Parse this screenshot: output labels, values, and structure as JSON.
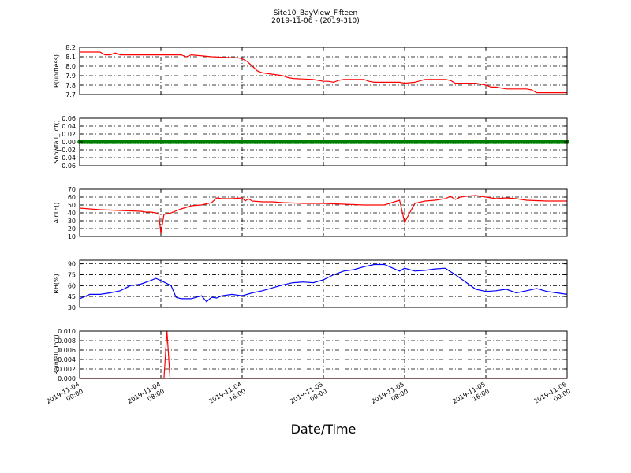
{
  "figure": {
    "title": "Site10_BayView_Fifteen",
    "subtitle": "2019-11-06 - (2019-310)",
    "xlabel": "Date/Time"
  },
  "chart_data": [
    {
      "type": "line",
      "ylabel": "P(unitless)",
      "color": "#ff0000",
      "ylim": [
        7.7,
        8.2
      ],
      "yticks": [
        "8.2",
        "8.1",
        "8.0",
        "7.9",
        "7.8",
        "7.7"
      ],
      "ytick_values": [
        8.2,
        8.1,
        8.0,
        7.9,
        7.8,
        7.7
      ],
      "xlim": [
        0,
        48
      ],
      "x": [
        0,
        2,
        2.5,
        3,
        3.5,
        4,
        6,
        6.5,
        7,
        7.5,
        8,
        10,
        10.5,
        11,
        13,
        15,
        15.5,
        16,
        16.5,
        17,
        17.5,
        18,
        20,
        20.5,
        21,
        23,
        23.5,
        24,
        24.5,
        25,
        25.5,
        26,
        28,
        28.5,
        29,
        31,
        31.5,
        32,
        33,
        34,
        35,
        36,
        36.5,
        37,
        38,
        39,
        40,
        40.5,
        41,
        42,
        44,
        44.5,
        45,
        46,
        48
      ],
      "y": [
        8.15,
        8.15,
        8.12,
        8.12,
        8.14,
        8.12,
        8.12,
        8.12,
        8.12,
        8.12,
        8.12,
        8.12,
        8.1,
        8.12,
        8.1,
        8.09,
        8.09,
        8.08,
        8.05,
        8.0,
        7.95,
        7.93,
        7.9,
        7.88,
        7.87,
        7.86,
        7.85,
        7.84,
        7.84,
        7.83,
        7.85,
        7.86,
        7.86,
        7.84,
        7.83,
        7.83,
        7.83,
        7.82,
        7.83,
        7.86,
        7.86,
        7.86,
        7.85,
        7.82,
        7.82,
        7.82,
        7.8,
        7.78,
        7.78,
        7.76,
        7.76,
        7.75,
        7.72,
        7.72,
        7.72
      ],
      "grid": true
    },
    {
      "type": "line",
      "ylabel": "Snowfall_Tot()",
      "color": "#008000",
      "ylim": [
        -0.06,
        0.06
      ],
      "yticks": [
        "0.06",
        "0.04",
        "0.02",
        "0.00",
        "−0.02",
        "−0.04",
        "−0.06"
      ],
      "ytick_values": [
        0.06,
        0.04,
        0.02,
        0.0,
        -0.02,
        -0.04,
        -0.06
      ],
      "xlim": [
        0,
        48
      ],
      "x": [
        0,
        48
      ],
      "y": [
        0.0,
        0.0
      ],
      "markers": true,
      "grid": true
    },
    {
      "type": "line",
      "ylabel": "AirTF()",
      "color": "#ff0000",
      "ylim": [
        10,
        70
      ],
      "yticks": [
        "70",
        "60",
        "50",
        "40",
        "30",
        "20",
        "10"
      ],
      "ytick_values": [
        70,
        60,
        50,
        40,
        30,
        20,
        10
      ],
      "xlim": [
        0,
        48
      ],
      "x": [
        0,
        2,
        4,
        6,
        6.5,
        7,
        7.5,
        7.8,
        8.0,
        8.3,
        9,
        10,
        11,
        12,
        13,
        13.5,
        14,
        15,
        16,
        16.3,
        16.6,
        17,
        18,
        19,
        20,
        22,
        24,
        26,
        28,
        30,
        30.5,
        31,
        31.5,
        32,
        33,
        34,
        35,
        36,
        36.5,
        37,
        37.5,
        38,
        39,
        40,
        41,
        42,
        43,
        44,
        46,
        48
      ],
      "y": [
        46,
        44,
        43,
        42,
        41,
        41,
        40,
        38,
        14,
        38,
        40,
        45,
        49,
        50,
        53,
        59,
        58,
        58,
        59,
        55,
        58,
        55,
        54,
        54,
        53,
        52,
        52,
        51,
        50,
        50,
        52,
        54,
        56,
        28,
        52,
        55,
        56,
        58,
        61,
        57,
        60,
        61,
        62,
        60,
        58,
        59,
        58,
        56,
        55,
        55
      ],
      "grid": true
    },
    {
      "type": "line",
      "ylabel": "RH(%)",
      "color": "#0000ff",
      "ylim": [
        30,
        95
      ],
      "yticks": [
        "90",
        "75",
        "60",
        "45",
        "30"
      ],
      "ytick_values": [
        90,
        75,
        60,
        45,
        30
      ],
      "xlim": [
        0,
        48
      ],
      "x": [
        0,
        1,
        2,
        3,
        4,
        5,
        6,
        7,
        7.5,
        8,
        9,
        9.5,
        10,
        11,
        12,
        12.5,
        13,
        13.5,
        14,
        15,
        16,
        17,
        18,
        19,
        20,
        21,
        22,
        23,
        24,
        25,
        26,
        27,
        28,
        29,
        30,
        31,
        31.5,
        32,
        33,
        34,
        35,
        36,
        37,
        38,
        39,
        40,
        41,
        42,
        43,
        44,
        45,
        46,
        47,
        48
      ],
      "y": [
        42,
        48,
        48,
        50,
        53,
        60,
        62,
        67,
        70,
        67,
        60,
        44,
        42,
        42,
        46,
        38,
        44,
        43,
        46,
        48,
        46,
        50,
        53,
        57,
        61,
        64,
        65,
        64,
        68,
        75,
        80,
        82,
        86,
        89,
        89,
        83,
        80,
        84,
        80,
        81,
        83,
        84,
        75,
        65,
        55,
        52,
        53,
        55,
        50,
        53,
        56,
        52,
        50,
        48
      ],
      "grid": true
    },
    {
      "type": "line",
      "ylabel": "Rainfall_Tot()",
      "color": "#ff0000",
      "ylim": [
        0.0,
        0.01
      ],
      "yticks": [
        "0.010",
        "0.008",
        "0.006",
        "0.004",
        "0.002",
        "0.000"
      ],
      "ytick_values": [
        0.01,
        0.008,
        0.006,
        0.004,
        0.002,
        0.0
      ],
      "xlim": [
        0,
        48
      ],
      "x": [
        0,
        8.3,
        8.6,
        8.9,
        48
      ],
      "y": [
        0.0,
        0.0,
        0.01,
        0.0,
        0.0
      ],
      "grid": true
    }
  ],
  "xticks": [
    {
      "x": 0,
      "line1": "2019-11-04",
      "line2": "00:00"
    },
    {
      "x": 8,
      "line1": "2019-11-04",
      "line2": "08:00"
    },
    {
      "x": 16,
      "line1": "2019-11-04",
      "line2": "16:00"
    },
    {
      "x": 24,
      "line1": "2019-11-05",
      "line2": "00:00"
    },
    {
      "x": 32,
      "line1": "2019-11-05",
      "line2": "08:00"
    },
    {
      "x": 40,
      "line1": "2019-11-05",
      "line2": "16:00"
    },
    {
      "x": 48,
      "line1": "2019-11-06",
      "line2": "00:00"
    }
  ]
}
